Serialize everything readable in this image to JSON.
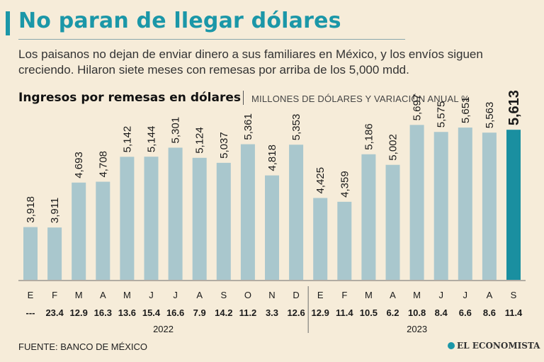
{
  "header": {
    "title": "No paran de llegar dólares",
    "subtitle": "Los paisanos no dejan de enviar dinero a sus familiares en México, y los envíos siguen creciendo. Hilaron siete meses con remesas por arriba de los 5,000 mdd."
  },
  "chart_data": {
    "type": "bar",
    "title": "Ingresos por remesas en dólares",
    "subtitle": "MILLONES DE DÓLARES Y VARIACIÓN ANUAL %",
    "categories": [
      "E",
      "F",
      "M",
      "A",
      "M",
      "J",
      "J",
      "A",
      "S",
      "O",
      "N",
      "D",
      "E",
      "F",
      "M",
      "A",
      "M",
      "J",
      "J",
      "A",
      "S"
    ],
    "values": [
      3918,
      3911,
      4693,
      4708,
      5142,
      5144,
      5301,
      5124,
      5037,
      5361,
      4818,
      5353,
      4425,
      4359,
      5186,
      5002,
      5697,
      5575,
      5651,
      5563,
      5613
    ],
    "value_labels": [
      "3,918",
      "3,911",
      "4,693",
      "4,708",
      "5,142",
      "5,144",
      "5,301",
      "5,124",
      "5,037",
      "5,361",
      "4,818",
      "5,353",
      "4,425",
      "4,359",
      "5,186",
      "5,002",
      "5,697",
      "5,575",
      "5,651",
      "5,563",
      "5,613"
    ],
    "annual_change": [
      "---",
      "23.4",
      "12.9",
      "16.3",
      "13.6",
      "15.4",
      "16.6",
      "7.9",
      "14.2",
      "11.2",
      "3.3",
      "12.6",
      "12.9",
      "11.4",
      "10.5",
      "6.2",
      "10.8",
      "8.4",
      "6.6",
      "8.6",
      "11.4"
    ],
    "years": [
      {
        "label": "2022",
        "count": 12
      },
      {
        "label": "2023",
        "count": 9
      }
    ],
    "highlight_index": 20,
    "ylim": [
      0,
      5800
    ],
    "colors": {
      "bar": "#a9c7cd",
      "highlight": "#1a8fa0",
      "text": "#1a1a1a"
    }
  },
  "footer": {
    "source": "FUENTE: BANCO DE MÉXICO",
    "brand": "EL ECONOMISTA"
  }
}
